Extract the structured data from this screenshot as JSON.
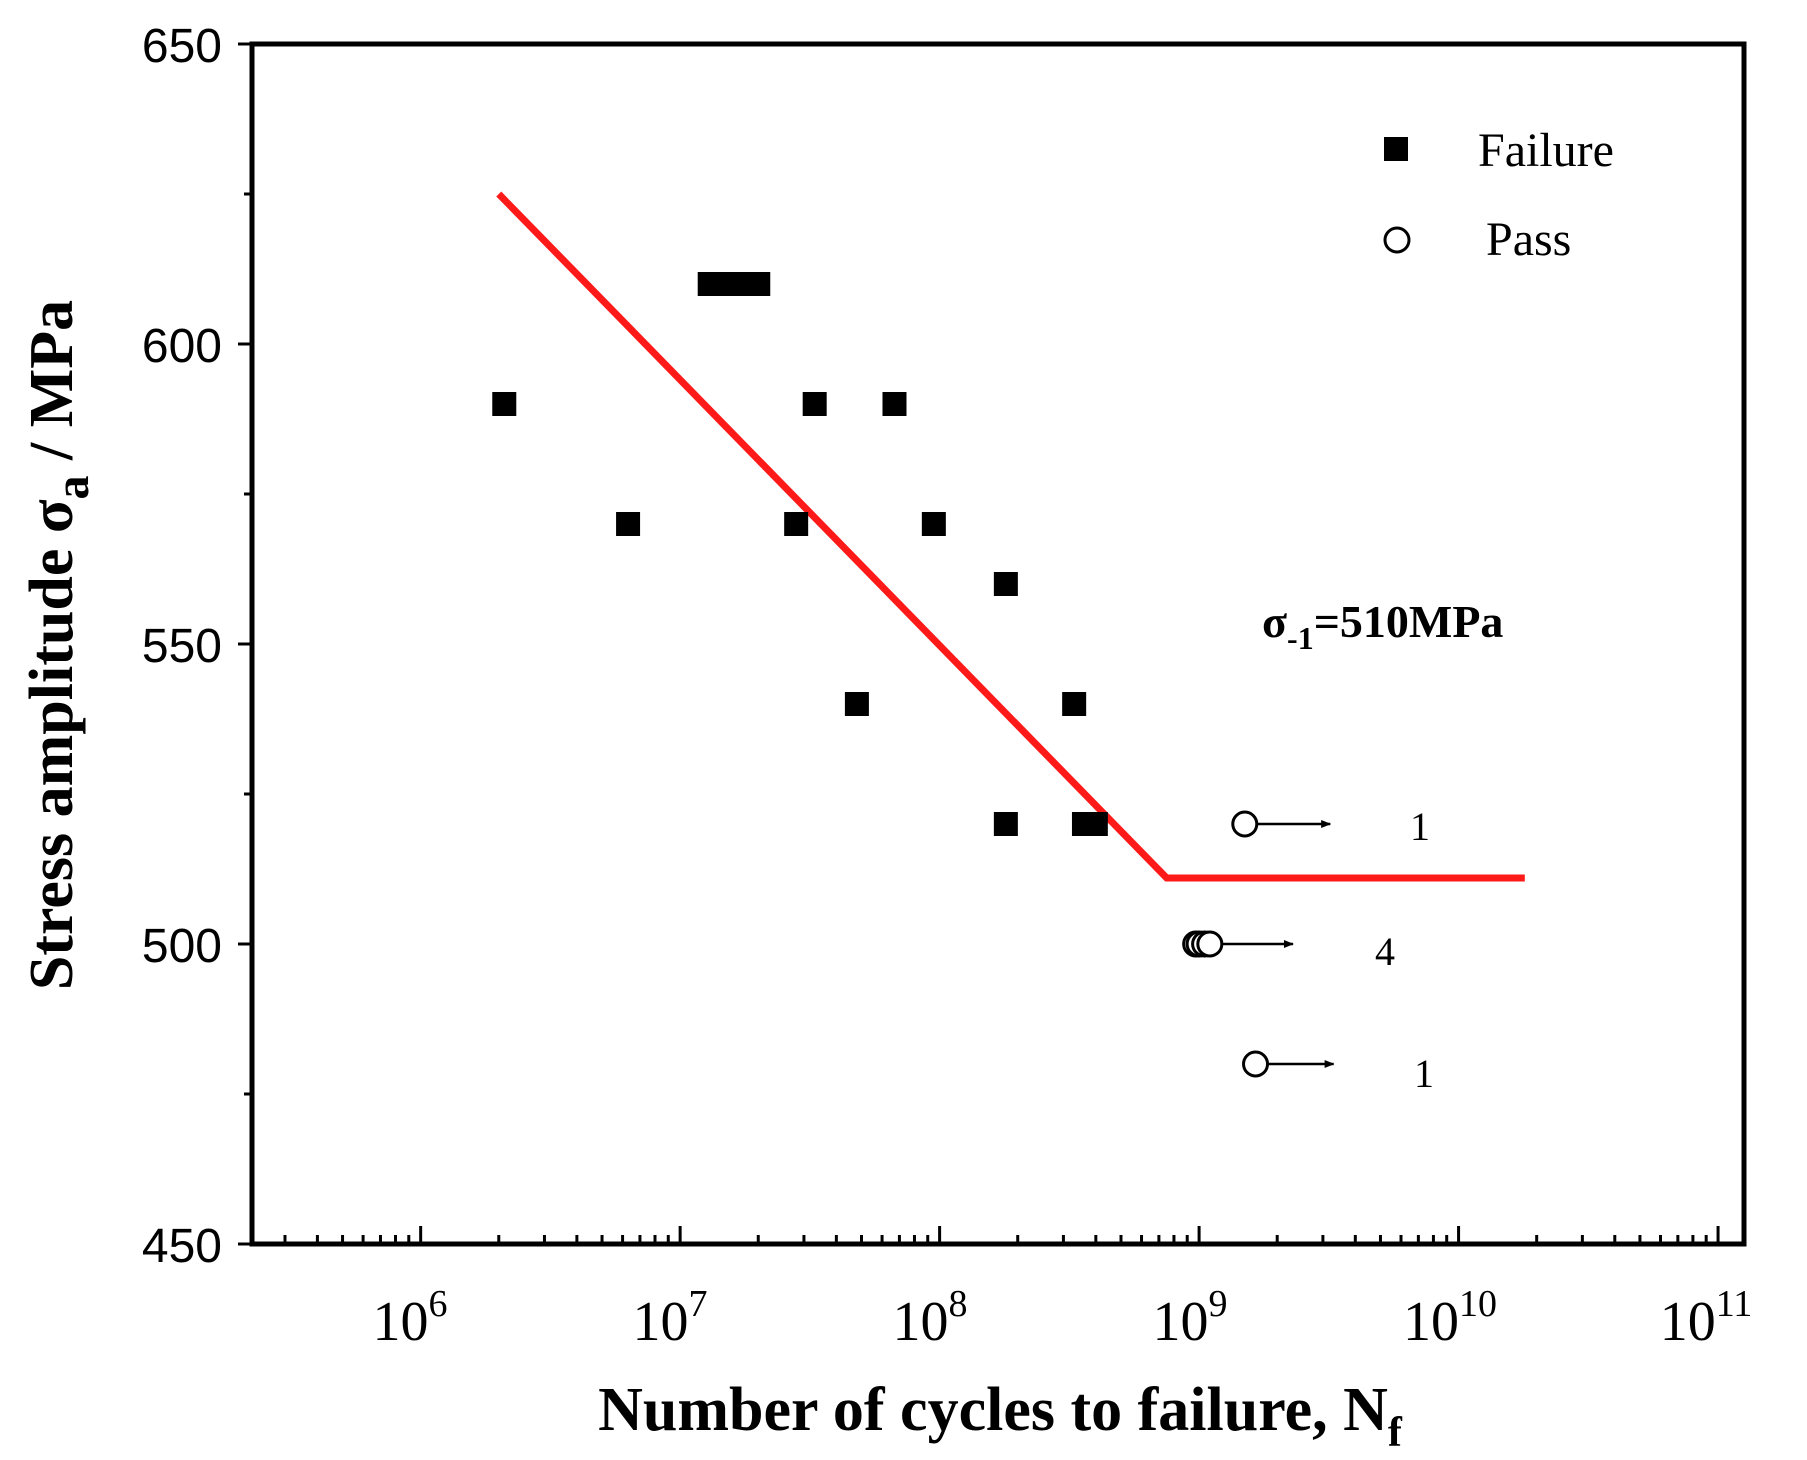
{
  "chart_data": {
    "type": "scatter",
    "title": "",
    "xlabel": "Number of cycles to failure, N",
    "xlabel_sub": "f",
    "ylabel": "Stress amplitude σ",
    "ylabel_sub": "a",
    "ylabel_suffix": " / MPa",
    "xscale": "log",
    "xlim_log10": [
      5.35,
      11.1
    ],
    "ylim": [
      450,
      650
    ],
    "y_ticks": [
      "450",
      "500",
      "550",
      "600",
      "650"
    ],
    "x_ticks": [
      {
        "base": "10",
        "exp": "6",
        "log10": 6
      },
      {
        "base": "10",
        "exp": "7",
        "log10": 7
      },
      {
        "base": "10",
        "exp": "8",
        "log10": 8
      },
      {
        "base": "10",
        "exp": "9",
        "log10": 9
      },
      {
        "base": "10",
        "exp": "10",
        "log10": 10
      },
      {
        "base": "10",
        "exp": "11",
        "log10": 11
      }
    ],
    "series": [
      {
        "name": "Failure",
        "marker": "filled-square",
        "points": [
          {
            "x": 2100000.0,
            "y": 590
          },
          {
            "x": 6300000.0,
            "y": 570
          },
          {
            "x": 13000000.0,
            "y": 610
          },
          {
            "x": 15000000.0,
            "y": 610
          },
          {
            "x": 17000000.0,
            "y": 610
          },
          {
            "x": 20000000.0,
            "y": 610
          },
          {
            "x": 28000000.0,
            "y": 570
          },
          {
            "x": 33000000.0,
            "y": 590
          },
          {
            "x": 48000000.0,
            "y": 540
          },
          {
            "x": 67000000.0,
            "y": 590
          },
          {
            "x": 95000000.0,
            "y": 570
          },
          {
            "x": 180000000.0,
            "y": 560
          },
          {
            "x": 180000000.0,
            "y": 520
          },
          {
            "x": 330000000.0,
            "y": 540
          },
          {
            "x": 360000000.0,
            "y": 520
          },
          {
            "x": 400000000.0,
            "y": 520
          }
        ]
      },
      {
        "name": "Pass",
        "marker": "open-circle",
        "points": [
          {
            "x": 1500000000.0,
            "y": 520
          },
          {
            "x": 970000000.0,
            "y": 500
          },
          {
            "x": 1000000000.0,
            "y": 500
          },
          {
            "x": 1050000000.0,
            "y": 500
          },
          {
            "x": 1100000000.0,
            "y": 500
          },
          {
            "x": 1650000000.0,
            "y": 480
          }
        ]
      }
    ],
    "fit_line": {
      "color": "#ff1a1a",
      "points": [
        {
          "x": 2000000.0,
          "y": 625
        },
        {
          "x": 750000000.0,
          "y": 511
        },
        {
          "x": 18000000000.0,
          "y": 511
        }
      ]
    },
    "runouts": [
      {
        "from_x": 1500000000.0,
        "y": 520,
        "to_x": 3200000000.0,
        "count": "1"
      },
      {
        "from_x": 1100000000.0,
        "y": 500,
        "to_x": 2300000000.0,
        "count": "4"
      },
      {
        "from_x": 1650000000.0,
        "y": 480,
        "to_x": 3300000000.0,
        "count": "1"
      }
    ],
    "annotation": {
      "sigma": "σ",
      "sub": "-1",
      "text": "=510MPa"
    },
    "legend": {
      "position": "top-right",
      "entries": [
        "Failure",
        "Pass"
      ]
    }
  }
}
